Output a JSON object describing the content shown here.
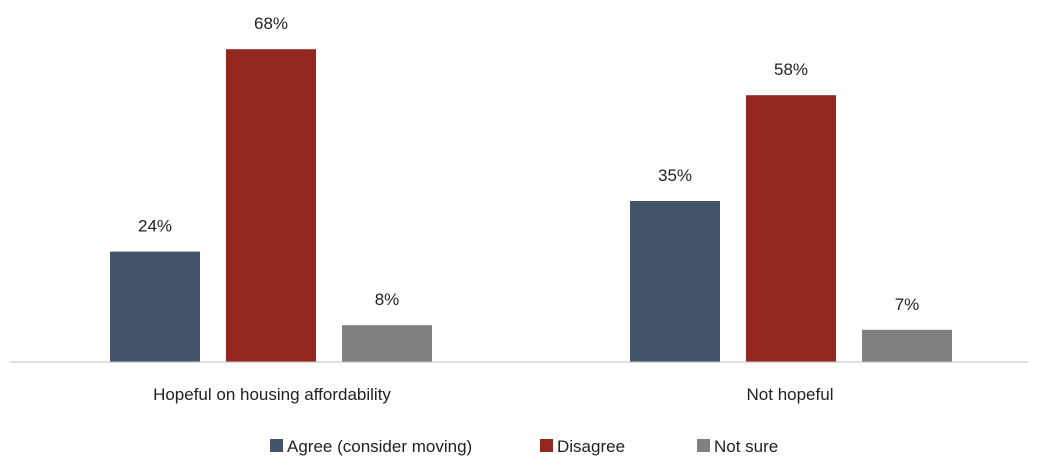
{
  "chart_data": {
    "type": "bar",
    "categories": [
      "Hopeful on housing affordability",
      "Not hopeful"
    ],
    "series": [
      {
        "name": "Agree (consider moving)",
        "values": [
          24,
          35
        ],
        "labels": [
          "24%",
          "35%"
        ],
        "color": "#44546a"
      },
      {
        "name": "Disagree",
        "values": [
          68,
          58
        ],
        "labels": [
          "68%",
          "58%"
        ],
        "color": "#942620"
      },
      {
        "name": "Not sure",
        "values": [
          8,
          7
        ],
        "labels": [
          "8%",
          "7%"
        ],
        "color": "#808080"
      }
    ],
    "value_unit": "%",
    "ylim": [
      0,
      74
    ],
    "grid": false,
    "legend_position": "bottom",
    "axis_line_color": "#bfbfbf"
  }
}
